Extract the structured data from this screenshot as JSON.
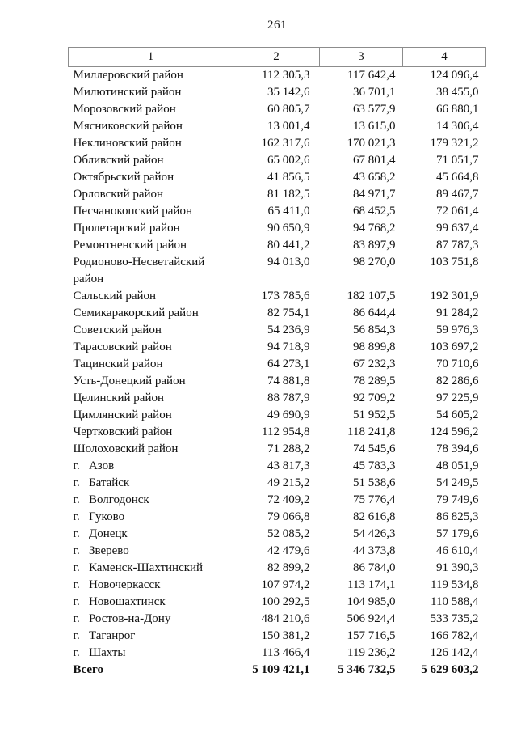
{
  "page": {
    "number": "261"
  },
  "table": {
    "headers": [
      "1",
      "2",
      "3",
      "4"
    ],
    "rows": [
      {
        "name": "Миллеровский район",
        "values": [
          "112 305,3",
          "117 642,4",
          "124 096,4"
        ]
      },
      {
        "name": "Милютинский район",
        "values": [
          "35 142,6",
          "36 701,1",
          "38 455,0"
        ]
      },
      {
        "name": "Морозовский район",
        "values": [
          "60 805,7",
          "63 577,9",
          "66 880,1"
        ]
      },
      {
        "name": "Мясниковский район",
        "values": [
          "13 001,4",
          "13 615,0",
          "14 306,4"
        ]
      },
      {
        "name": "Неклиновский район",
        "values": [
          "162 317,6",
          "170 021,3",
          "179 321,2"
        ]
      },
      {
        "name": "Обливский район",
        "values": [
          "65 002,6",
          "67 801,4",
          "71 051,7"
        ]
      },
      {
        "name": "Октябрьский район",
        "values": [
          "41 856,5",
          "43 658,2",
          "45 664,8"
        ]
      },
      {
        "name": "Орловский район",
        "values": [
          "81 182,5",
          "84 971,7",
          "89 467,7"
        ]
      },
      {
        "name": "Песчанокопский район",
        "values": [
          "65 411,0",
          "68 452,5",
          "72 061,4"
        ]
      },
      {
        "name": "Пролетарский район",
        "values": [
          "90 650,9",
          "94 768,2",
          "99 637,4"
        ]
      },
      {
        "name": "Ремонтненский район",
        "values": [
          "80 441,2",
          "83 897,9",
          "87 787,3"
        ]
      },
      {
        "name": "Родионово-Несветайский район",
        "values": [
          "94 013,0",
          "98 270,0",
          "103 751,8"
        ]
      },
      {
        "name": "Сальский район",
        "values": [
          "173 785,6",
          "182 107,5",
          "192 301,9"
        ]
      },
      {
        "name": "Семикаракорский район",
        "values": [
          "82 754,1",
          "86 644,4",
          "91 284,2"
        ]
      },
      {
        "name": "Советский район",
        "values": [
          "54 236,9",
          "56 854,3",
          "59 976,3"
        ]
      },
      {
        "name": "Тарасовский район",
        "values": [
          "94 718,9",
          "98 899,8",
          "103 697,2"
        ]
      },
      {
        "name": "Тацинский район",
        "values": [
          "64 273,1",
          "67 232,3",
          "70 710,6"
        ]
      },
      {
        "name": "Усть-Донецкий район",
        "values": [
          "74 881,8",
          "78 289,5",
          "82 286,6"
        ]
      },
      {
        "name": "Целинский район",
        "values": [
          "88 787,9",
          "92 709,2",
          "97 225,9"
        ]
      },
      {
        "name": "Цимлянский район",
        "values": [
          "49 690,9",
          "51 952,5",
          "54 605,2"
        ]
      },
      {
        "name": "Чертковский район",
        "values": [
          "112 954,8",
          "118 241,8",
          "124 596,2"
        ]
      },
      {
        "name": "Шолоховский район",
        "values": [
          "71 288,2",
          "74 545,6",
          "78 394,6"
        ]
      },
      {
        "name": "г.   Азов",
        "values": [
          "43 817,3",
          "45 783,3",
          "48 051,9"
        ]
      },
      {
        "name": "г.   Батайск",
        "values": [
          "49 215,2",
          "51 538,6",
          "54 249,5"
        ]
      },
      {
        "name": "г.   Волгодонск",
        "values": [
          "72 409,2",
          "75 776,4",
          "79 749,6"
        ]
      },
      {
        "name": "г.   Гуково",
        "values": [
          "79 066,8",
          "82 616,8",
          "86 825,3"
        ]
      },
      {
        "name": "г.   Донецк",
        "values": [
          "52 085,2",
          "54 426,3",
          "57 179,6"
        ]
      },
      {
        "name": "г.   Зверево",
        "values": [
          "42 479,6",
          "44 373,8",
          "46 610,4"
        ]
      },
      {
        "name": "г.   Каменск-Шахтинский",
        "values": [
          "82 899,2",
          "86 784,0",
          "91 390,3"
        ]
      },
      {
        "name": "г.   Новочеркасск",
        "values": [
          "107 974,2",
          "113 174,1",
          "119 534,8"
        ]
      },
      {
        "name": "г.   Новошахтинск",
        "values": [
          "100 292,5",
          "104 985,0",
          "110 588,4"
        ]
      },
      {
        "name": "г.   Ростов-на-Дону",
        "values": [
          "484 210,6",
          "506 924,4",
          "533 735,2"
        ]
      },
      {
        "name": "г.   Таганрог",
        "values": [
          "150 381,2",
          "157 716,5",
          "166 782,4"
        ]
      },
      {
        "name": "г.   Шахты",
        "values": [
          "113 466,4",
          "119 236,2",
          "126 142,4"
        ]
      },
      {
        "name": "Всего",
        "values": [
          "5 109 421,1",
          "5 346 732,5",
          "5 629 603,2"
        ],
        "bold": true
      }
    ]
  },
  "colors": {
    "text": "#121212",
    "table_border": "#8c8c8c",
    "background": "#ffffff"
  }
}
